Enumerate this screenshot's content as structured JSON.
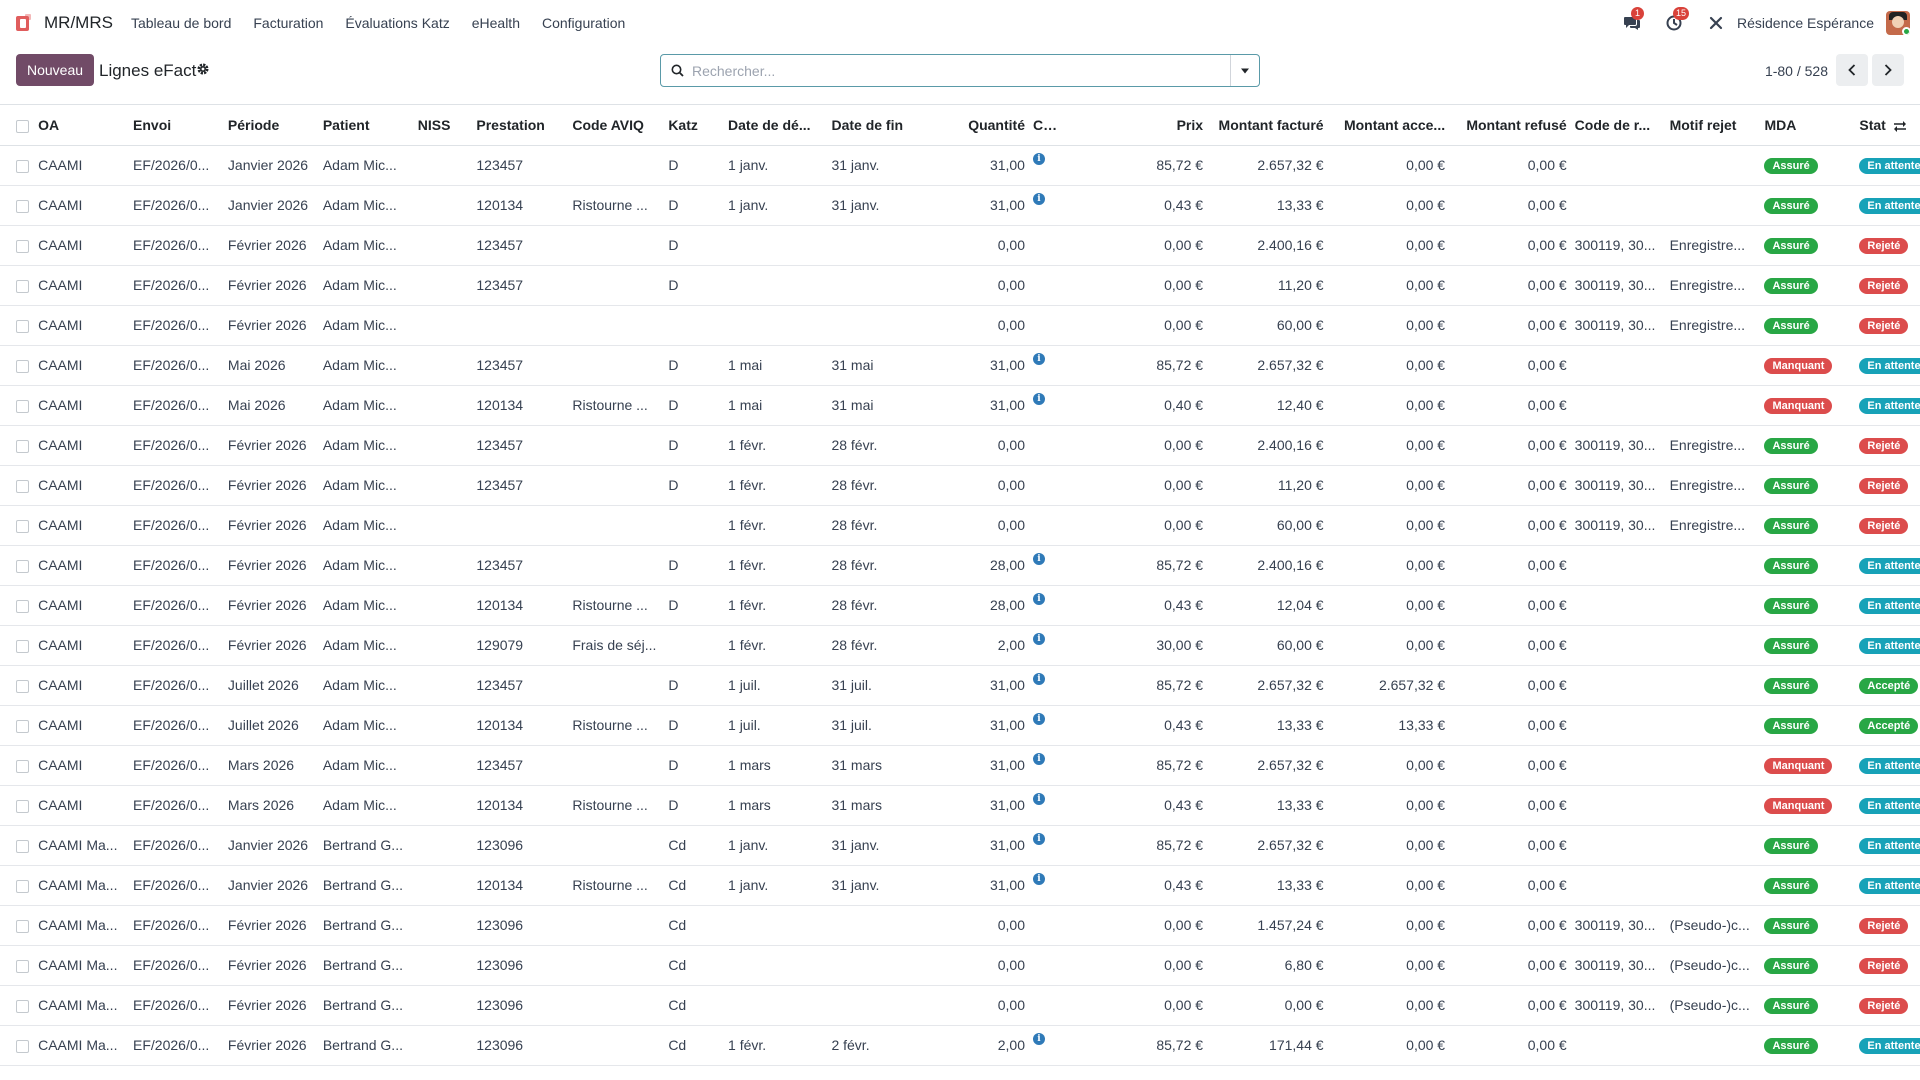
{
  "nav": {
    "brand": "MR/MRS",
    "items": [
      "Tableau de bord",
      "Facturation",
      "Évaluations Katz",
      "eHealth",
      "Configuration"
    ],
    "messages_badge": "1",
    "activities_badge": "15",
    "company": "Résidence Espérance"
  },
  "control": {
    "new_button": "Nouveau",
    "title": "Lignes eFact",
    "search_placeholder": "Rechercher...",
    "pager": "1-80 / 528"
  },
  "table": {
    "headers": {
      "oa": "OA",
      "envoi": "Envoi",
      "periode": "Période",
      "patient": "Patient",
      "niss": "NISS",
      "prestation": "Prestation",
      "aviq": "Code AVIQ",
      "katz": "Katz",
      "debut": "Date de dé...",
      "fin": "Date de fin",
      "quantite": "Quantité",
      "calc": "Calc.",
      "prix": "Prix",
      "facture": "Montant facturé",
      "accepte": "Montant acce...",
      "refuse": "Montant refusé",
      "code_rejet": "Code de r...",
      "motif": "Motif rejet",
      "mda": "MDA",
      "statut": "Stat"
    },
    "rows": [
      {
        "oa": "CAAMI",
        "envoi": "EF/2026/0...",
        "periode": "Janvier 2026",
        "patient": "Adam Mic...",
        "niss": "",
        "prestation": "123457",
        "aviq": "",
        "katz": "D",
        "debut": "1 janv.",
        "fin": "31 janv.",
        "quantite": "31,00",
        "calc": true,
        "prix": "85,72 €",
        "facture": "2.657,32 €",
        "accepte": "0,00 €",
        "refuse": "0,00 €",
        "code_rejet": "",
        "motif": "",
        "mda": "Assuré",
        "mda_class": "assure",
        "statut": "En attente",
        "statut_class": "attente"
      },
      {
        "oa": "CAAMI",
        "envoi": "EF/2026/0...",
        "periode": "Janvier 2026",
        "patient": "Adam Mic...",
        "niss": "",
        "prestation": "120134",
        "aviq": "Ristourne ...",
        "katz": "D",
        "debut": "1 janv.",
        "fin": "31 janv.",
        "quantite": "31,00",
        "calc": true,
        "prix": "0,43 €",
        "facture": "13,33 €",
        "accepte": "0,00 €",
        "refuse": "0,00 €",
        "code_rejet": "",
        "motif": "",
        "mda": "Assuré",
        "mda_class": "assure",
        "statut": "En attente",
        "statut_class": "attente"
      },
      {
        "oa": "CAAMI",
        "envoi": "EF/2026/0...",
        "periode": "Février 2026",
        "patient": "Adam Mic...",
        "niss": "",
        "prestation": "123457",
        "aviq": "",
        "katz": "D",
        "debut": "",
        "fin": "",
        "quantite": "0,00",
        "calc": false,
        "prix": "0,00 €",
        "facture": "2.400,16 €",
        "accepte": "0,00 €",
        "refuse": "0,00 €",
        "code_rejet": "300119, 30...",
        "motif": "Enregistre...",
        "mda": "Assuré",
        "mda_class": "assure",
        "statut": "Rejeté",
        "statut_class": "rejete"
      },
      {
        "oa": "CAAMI",
        "envoi": "EF/2026/0...",
        "periode": "Février 2026",
        "patient": "Adam Mic...",
        "niss": "",
        "prestation": "123457",
        "aviq": "",
        "katz": "D",
        "debut": "",
        "fin": "",
        "quantite": "0,00",
        "calc": false,
        "prix": "0,00 €",
        "facture": "11,20 €",
        "accepte": "0,00 €",
        "refuse": "0,00 €",
        "code_rejet": "300119, 30...",
        "motif": "Enregistre...",
        "mda": "Assuré",
        "mda_class": "assure",
        "statut": "Rejeté",
        "statut_class": "rejete"
      },
      {
        "oa": "CAAMI",
        "envoi": "EF/2026/0...",
        "periode": "Février 2026",
        "patient": "Adam Mic...",
        "niss": "",
        "prestation": "",
        "aviq": "",
        "katz": "",
        "debut": "",
        "fin": "",
        "quantite": "0,00",
        "calc": false,
        "prix": "0,00 €",
        "facture": "60,00 €",
        "accepte": "0,00 €",
        "refuse": "0,00 €",
        "code_rejet": "300119, 30...",
        "motif": "Enregistre...",
        "mda": "Assuré",
        "mda_class": "assure",
        "statut": "Rejeté",
        "statut_class": "rejete"
      },
      {
        "oa": "CAAMI",
        "envoi": "EF/2026/0...",
        "periode": "Mai 2026",
        "patient": "Adam Mic...",
        "niss": "",
        "prestation": "123457",
        "aviq": "",
        "katz": "D",
        "debut": "1 mai",
        "fin": "31 mai",
        "quantite": "31,00",
        "calc": true,
        "prix": "85,72 €",
        "facture": "2.657,32 €",
        "accepte": "0,00 €",
        "refuse": "0,00 €",
        "code_rejet": "",
        "motif": "",
        "mda": "Manquant",
        "mda_class": "manquant",
        "statut": "En attente",
        "statut_class": "attente"
      },
      {
        "oa": "CAAMI",
        "envoi": "EF/2026/0...",
        "periode": "Mai 2026",
        "patient": "Adam Mic...",
        "niss": "",
        "prestation": "120134",
        "aviq": "Ristourne ...",
        "katz": "D",
        "debut": "1 mai",
        "fin": "31 mai",
        "quantite": "31,00",
        "calc": true,
        "prix": "0,40 €",
        "facture": "12,40 €",
        "accepte": "0,00 €",
        "refuse": "0,00 €",
        "code_rejet": "",
        "motif": "",
        "mda": "Manquant",
        "mda_class": "manquant",
        "statut": "En attente",
        "statut_class": "attente"
      },
      {
        "oa": "CAAMI",
        "envoi": "EF/2026/0...",
        "periode": "Février 2026",
        "patient": "Adam Mic...",
        "niss": "",
        "prestation": "123457",
        "aviq": "",
        "katz": "D",
        "debut": "1 févr.",
        "fin": "28 févr.",
        "quantite": "0,00",
        "calc": false,
        "prix": "0,00 €",
        "facture": "2.400,16 €",
        "accepte": "0,00 €",
        "refuse": "0,00 €",
        "code_rejet": "300119, 30...",
        "motif": "Enregistre...",
        "mda": "Assuré",
        "mda_class": "assure",
        "statut": "Rejeté",
        "statut_class": "rejete"
      },
      {
        "oa": "CAAMI",
        "envoi": "EF/2026/0...",
        "periode": "Février 2026",
        "patient": "Adam Mic...",
        "niss": "",
        "prestation": "123457",
        "aviq": "",
        "katz": "D",
        "debut": "1 févr.",
        "fin": "28 févr.",
        "quantite": "0,00",
        "calc": false,
        "prix": "0,00 €",
        "facture": "11,20 €",
        "accepte": "0,00 €",
        "refuse": "0,00 €",
        "code_rejet": "300119, 30...",
        "motif": "Enregistre...",
        "mda": "Assuré",
        "mda_class": "assure",
        "statut": "Rejeté",
        "statut_class": "rejete"
      },
      {
        "oa": "CAAMI",
        "envoi": "EF/2026/0...",
        "periode": "Février 2026",
        "patient": "Adam Mic...",
        "niss": "",
        "prestation": "",
        "aviq": "",
        "katz": "",
        "debut": "1 févr.",
        "fin": "28 févr.",
        "quantite": "0,00",
        "calc": false,
        "prix": "0,00 €",
        "facture": "60,00 €",
        "accepte": "0,00 €",
        "refuse": "0,00 €",
        "code_rejet": "300119, 30...",
        "motif": "Enregistre...",
        "mda": "Assuré",
        "mda_class": "assure",
        "statut": "Rejeté",
        "statut_class": "rejete"
      },
      {
        "oa": "CAAMI",
        "envoi": "EF/2026/0...",
        "periode": "Février 2026",
        "patient": "Adam Mic...",
        "niss": "",
        "prestation": "123457",
        "aviq": "",
        "katz": "D",
        "debut": "1 févr.",
        "fin": "28 févr.",
        "quantite": "28,00",
        "calc": true,
        "prix": "85,72 €",
        "facture": "2.400,16 €",
        "accepte": "0,00 €",
        "refuse": "0,00 €",
        "code_rejet": "",
        "motif": "",
        "mda": "Assuré",
        "mda_class": "assure",
        "statut": "En attente",
        "statut_class": "attente"
      },
      {
        "oa": "CAAMI",
        "envoi": "EF/2026/0...",
        "periode": "Février 2026",
        "patient": "Adam Mic...",
        "niss": "",
        "prestation": "120134",
        "aviq": "Ristourne ...",
        "katz": "D",
        "debut": "1 févr.",
        "fin": "28 févr.",
        "quantite": "28,00",
        "calc": true,
        "prix": "0,43 €",
        "facture": "12,04 €",
        "accepte": "0,00 €",
        "refuse": "0,00 €",
        "code_rejet": "",
        "motif": "",
        "mda": "Assuré",
        "mda_class": "assure",
        "statut": "En attente",
        "statut_class": "attente"
      },
      {
        "oa": "CAAMI",
        "envoi": "EF/2026/0...",
        "periode": "Février 2026",
        "patient": "Adam Mic...",
        "niss": "",
        "prestation": "129079",
        "aviq": "Frais de séj...",
        "katz": "",
        "debut": "1 févr.",
        "fin": "28 févr.",
        "quantite": "2,00",
        "calc": true,
        "prix": "30,00 €",
        "facture": "60,00 €",
        "accepte": "0,00 €",
        "refuse": "0,00 €",
        "code_rejet": "",
        "motif": "",
        "mda": "Assuré",
        "mda_class": "assure",
        "statut": "En attente",
        "statut_class": "attente"
      },
      {
        "oa": "CAAMI",
        "envoi": "EF/2026/0...",
        "periode": "Juillet 2026",
        "patient": "Adam Mic...",
        "niss": "",
        "prestation": "123457",
        "aviq": "",
        "katz": "D",
        "debut": "1 juil.",
        "fin": "31 juil.",
        "quantite": "31,00",
        "calc": true,
        "prix": "85,72 €",
        "facture": "2.657,32 €",
        "accepte": "2.657,32 €",
        "refuse": "0,00 €",
        "code_rejet": "",
        "motif": "",
        "mda": "Assuré",
        "mda_class": "assure",
        "statut": "Accepté",
        "statut_class": "accepte"
      },
      {
        "oa": "CAAMI",
        "envoi": "EF/2026/0...",
        "periode": "Juillet 2026",
        "patient": "Adam Mic...",
        "niss": "",
        "prestation": "120134",
        "aviq": "Ristourne ...",
        "katz": "D",
        "debut": "1 juil.",
        "fin": "31 juil.",
        "quantite": "31,00",
        "calc": true,
        "prix": "0,43 €",
        "facture": "13,33 €",
        "accepte": "13,33 €",
        "refuse": "0,00 €",
        "code_rejet": "",
        "motif": "",
        "mda": "Assuré",
        "mda_class": "assure",
        "statut": "Accepté",
        "statut_class": "accepte"
      },
      {
        "oa": "CAAMI",
        "envoi": "EF/2026/0...",
        "periode": "Mars 2026",
        "patient": "Adam Mic...",
        "niss": "",
        "prestation": "123457",
        "aviq": "",
        "katz": "D",
        "debut": "1 mars",
        "fin": "31 mars",
        "quantite": "31,00",
        "calc": true,
        "prix": "85,72 €",
        "facture": "2.657,32 €",
        "accepte": "0,00 €",
        "refuse": "0,00 €",
        "code_rejet": "",
        "motif": "",
        "mda": "Manquant",
        "mda_class": "manquant",
        "statut": "En attente",
        "statut_class": "attente"
      },
      {
        "oa": "CAAMI",
        "envoi": "EF/2026/0...",
        "periode": "Mars 2026",
        "patient": "Adam Mic...",
        "niss": "",
        "prestation": "120134",
        "aviq": "Ristourne ...",
        "katz": "D",
        "debut": "1 mars",
        "fin": "31 mars",
        "quantite": "31,00",
        "calc": true,
        "prix": "0,43 €",
        "facture": "13,33 €",
        "accepte": "0,00 €",
        "refuse": "0,00 €",
        "code_rejet": "",
        "motif": "",
        "mda": "Manquant",
        "mda_class": "manquant",
        "statut": "En attente",
        "statut_class": "attente"
      },
      {
        "oa": "CAAMI Ma...",
        "envoi": "EF/2026/0...",
        "periode": "Janvier 2026",
        "patient": "Bertrand G...",
        "niss": "",
        "prestation": "123096",
        "aviq": "",
        "katz": "Cd",
        "debut": "1 janv.",
        "fin": "31 janv.",
        "quantite": "31,00",
        "calc": true,
        "prix": "85,72 €",
        "facture": "2.657,32 €",
        "accepte": "0,00 €",
        "refuse": "0,00 €",
        "code_rejet": "",
        "motif": "",
        "mda": "Assuré",
        "mda_class": "assure",
        "statut": "En attente",
        "statut_class": "attente"
      },
      {
        "oa": "CAAMI Ma...",
        "envoi": "EF/2026/0...",
        "periode": "Janvier 2026",
        "patient": "Bertrand G...",
        "niss": "",
        "prestation": "120134",
        "aviq": "Ristourne ...",
        "katz": "Cd",
        "debut": "1 janv.",
        "fin": "31 janv.",
        "quantite": "31,00",
        "calc": true,
        "prix": "0,43 €",
        "facture": "13,33 €",
        "accepte": "0,00 €",
        "refuse": "0,00 €",
        "code_rejet": "",
        "motif": "",
        "mda": "Assuré",
        "mda_class": "assure",
        "statut": "En attente",
        "statut_class": "attente"
      },
      {
        "oa": "CAAMI Ma...",
        "envoi": "EF/2026/0...",
        "periode": "Février 2026",
        "patient": "Bertrand G...",
        "niss": "",
        "prestation": "123096",
        "aviq": "",
        "katz": "Cd",
        "debut": "",
        "fin": "",
        "quantite": "0,00",
        "calc": false,
        "prix": "0,00 €",
        "facture": "1.457,24 €",
        "accepte": "0,00 €",
        "refuse": "0,00 €",
        "code_rejet": "300119, 30...",
        "motif": "(Pseudo-)c...",
        "mda": "Assuré",
        "mda_class": "assure",
        "statut": "Rejeté",
        "statut_class": "rejete"
      },
      {
        "oa": "CAAMI Ma...",
        "envoi": "EF/2026/0...",
        "periode": "Février 2026",
        "patient": "Bertrand G...",
        "niss": "",
        "prestation": "123096",
        "aviq": "",
        "katz": "Cd",
        "debut": "",
        "fin": "",
        "quantite": "0,00",
        "calc": false,
        "prix": "0,00 €",
        "facture": "6,80 €",
        "accepte": "0,00 €",
        "refuse": "0,00 €",
        "code_rejet": "300119, 30...",
        "motif": "(Pseudo-)c...",
        "mda": "Assuré",
        "mda_class": "assure",
        "statut": "Rejeté",
        "statut_class": "rejete"
      },
      {
        "oa": "CAAMI Ma...",
        "envoi": "EF/2026/0...",
        "periode": "Février 2026",
        "patient": "Bertrand G...",
        "niss": "",
        "prestation": "123096",
        "aviq": "",
        "katz": "Cd",
        "debut": "",
        "fin": "",
        "quantite": "0,00",
        "calc": false,
        "prix": "0,00 €",
        "facture": "0,00 €",
        "accepte": "0,00 €",
        "refuse": "0,00 €",
        "code_rejet": "300119, 30...",
        "motif": "(Pseudo-)c...",
        "mda": "Assuré",
        "mda_class": "assure",
        "statut": "Rejeté",
        "statut_class": "rejete"
      },
      {
        "oa": "CAAMI Ma...",
        "envoi": "EF/2026/0...",
        "periode": "Février 2026",
        "patient": "Bertrand G...",
        "niss": "",
        "prestation": "123096",
        "aviq": "",
        "katz": "Cd",
        "debut": "1 févr.",
        "fin": "2 févr.",
        "quantite": "2,00",
        "calc": true,
        "prix": "85,72 €",
        "facture": "171,44 €",
        "accepte": "0,00 €",
        "refuse": "0,00 €",
        "code_rejet": "",
        "motif": "",
        "mda": "Assuré",
        "mda_class": "assure",
        "statut": "En attente",
        "statut_class": "attente"
      }
    ]
  }
}
